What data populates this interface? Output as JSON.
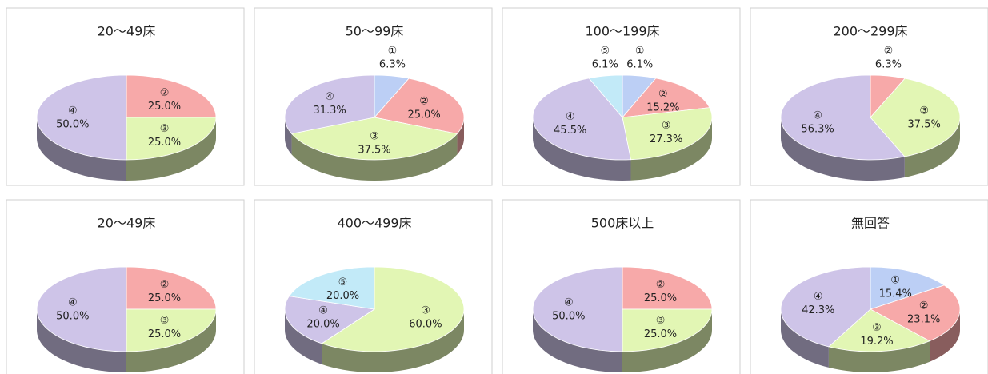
{
  "chart_data": [
    {
      "type": "pie",
      "title": "20～49床",
      "categories": [
        "②",
        "③",
        "④"
      ],
      "values": [
        25.0,
        25.0,
        50.0
      ],
      "value_labels": [
        "25.0%",
        "25.0%",
        "50.0%"
      ],
      "colors": [
        "#f7a9a9",
        "#e2f6b4",
        "#cec4e8"
      ]
    },
    {
      "type": "pie",
      "title": "50～99床",
      "categories": [
        "①",
        "②",
        "③",
        "④"
      ],
      "values": [
        6.3,
        25.0,
        37.5,
        31.3
      ],
      "value_labels": [
        "6.3%",
        "25.0%",
        "37.5%",
        "31.3%"
      ],
      "colors": [
        "#bccff5",
        "#f7a9a9",
        "#e2f6b4",
        "#cec4e8"
      ]
    },
    {
      "type": "pie",
      "title": "100～199床",
      "categories": [
        "①",
        "②",
        "③",
        "④",
        "⑤"
      ],
      "values": [
        6.1,
        15.2,
        27.3,
        45.5,
        6.1
      ],
      "value_labels": [
        "6.1%",
        "15.2%",
        "27.3%",
        "45.5%",
        "6.1%"
      ],
      "colors": [
        "#bccff5",
        "#f7a9a9",
        "#e2f6b4",
        "#cec4e8",
        "#c2eaf8"
      ]
    },
    {
      "type": "pie",
      "title": "200～299床",
      "categories": [
        "②",
        "③",
        "④"
      ],
      "values": [
        6.3,
        37.5,
        56.3
      ],
      "value_labels": [
        "6.3%",
        "37.5%",
        "56.3%"
      ],
      "colors": [
        "#f7a9a9",
        "#e2f6b4",
        "#cec4e8"
      ]
    },
    {
      "type": "pie",
      "title": "20～49床",
      "categories": [
        "②",
        "③",
        "④"
      ],
      "values": [
        25.0,
        25.0,
        50.0
      ],
      "value_labels": [
        "25.0%",
        "25.0%",
        "50.0%"
      ],
      "colors": [
        "#f7a9a9",
        "#e2f6b4",
        "#cec4e8"
      ]
    },
    {
      "type": "pie",
      "title": "400～499床",
      "categories": [
        "③",
        "④",
        "⑤"
      ],
      "values": [
        60.0,
        20.0,
        20.0
      ],
      "value_labels": [
        "60.0%",
        "20.0%",
        "20.0%"
      ],
      "colors": [
        "#e2f6b4",
        "#cec4e8",
        "#c2eaf8"
      ]
    },
    {
      "type": "pie",
      "title": "500床以上",
      "categories": [
        "②",
        "③",
        "④"
      ],
      "values": [
        25.0,
        25.0,
        50.0
      ],
      "value_labels": [
        "25.0%",
        "25.0%",
        "50.0%"
      ],
      "colors": [
        "#f7a9a9",
        "#e2f6b4",
        "#cec4e8"
      ]
    },
    {
      "type": "pie",
      "title": "無回答",
      "categories": [
        "①",
        "②",
        "③",
        "④"
      ],
      "values": [
        15.4,
        23.1,
        19.2,
        42.3
      ],
      "value_labels": [
        "15.4%",
        "23.1%",
        "19.2%",
        "42.3%"
      ],
      "colors": [
        "#bccff5",
        "#f7a9a9",
        "#e2f6b4",
        "#cec4e8"
      ]
    }
  ]
}
